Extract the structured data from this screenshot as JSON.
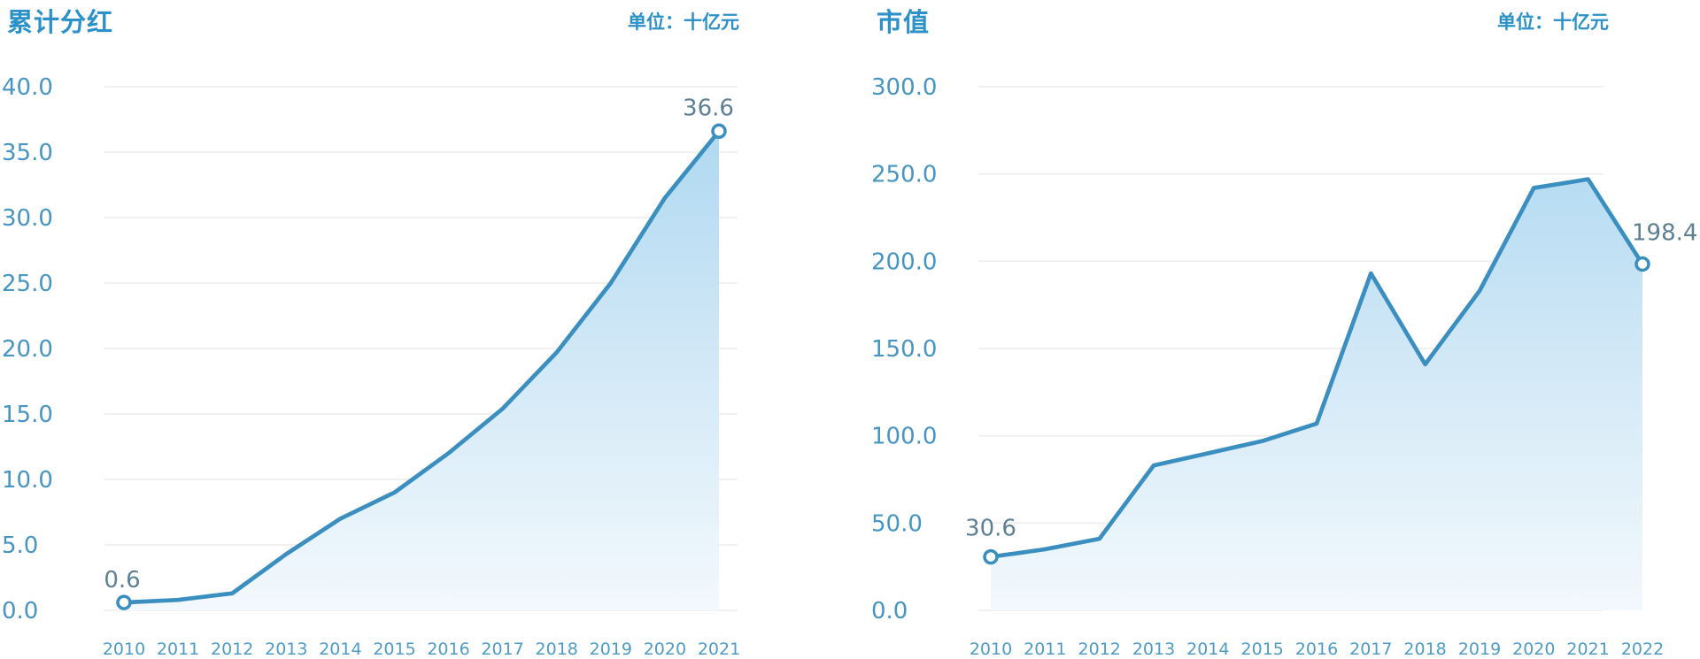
{
  "colors": {
    "background": "#ffffff",
    "title_text": "#2b91c8",
    "axis_tick_text": "#4695c2",
    "year_tick_text": "#4e9cc6",
    "point_label_text": "#5e8095",
    "line": "#3b8fc0",
    "marker_fill": "#ffffff",
    "gridline": "#edecec",
    "area_gradient_top": "#a9d6f0",
    "area_gradient_mid": "#d4e9f7",
    "area_gradient_bottom": "#f3f9fd"
  },
  "chart_data": [
    {
      "type": "area",
      "title": "累计分红",
      "unit_label": "单位：十亿元",
      "categories": [
        "2010",
        "2011",
        "2012",
        "2013",
        "2014",
        "2015",
        "2016",
        "2017",
        "2018",
        "2019",
        "2020",
        "2021"
      ],
      "values": [
        0.6,
        0.8,
        1.3,
        4.3,
        7.0,
        9.0,
        12.0,
        15.4,
        19.7,
        25.0,
        31.5,
        36.6
      ],
      "first_point_label": "0.6",
      "last_point_label": "36.6",
      "y_ticks": [
        "0.0",
        "5.0",
        "10.0",
        "15.0",
        "20.0",
        "25.0",
        "30.0",
        "35.0",
        "40.0"
      ],
      "ylim": [
        0,
        40
      ],
      "xlabel": "",
      "ylabel": "",
      "grid": true,
      "legend": "none",
      "markers": "first-and-last-open-circle"
    },
    {
      "type": "area",
      "title": "市值",
      "unit_label": "单位：十亿元",
      "categories": [
        "2010",
        "2011",
        "2012",
        "2013",
        "2014",
        "2015",
        "2016",
        "2017",
        "2018",
        "2019",
        "2020",
        "2021",
        "2022"
      ],
      "values": [
        30.6,
        35.0,
        41.0,
        83.0,
        90.0,
        97.0,
        107.0,
        193.0,
        141.0,
        183.0,
        242.0,
        247.0,
        198.4
      ],
      "first_point_label": "30.6",
      "last_point_label": "198.4",
      "y_ticks": [
        "0.0",
        "50.0",
        "100.0",
        "150.0",
        "200.0",
        "250.0",
        "300.0"
      ],
      "ylim": [
        0,
        300
      ],
      "xlabel": "",
      "ylabel": "",
      "grid": true,
      "legend": "none",
      "markers": "first-and-last-open-circle"
    }
  ]
}
